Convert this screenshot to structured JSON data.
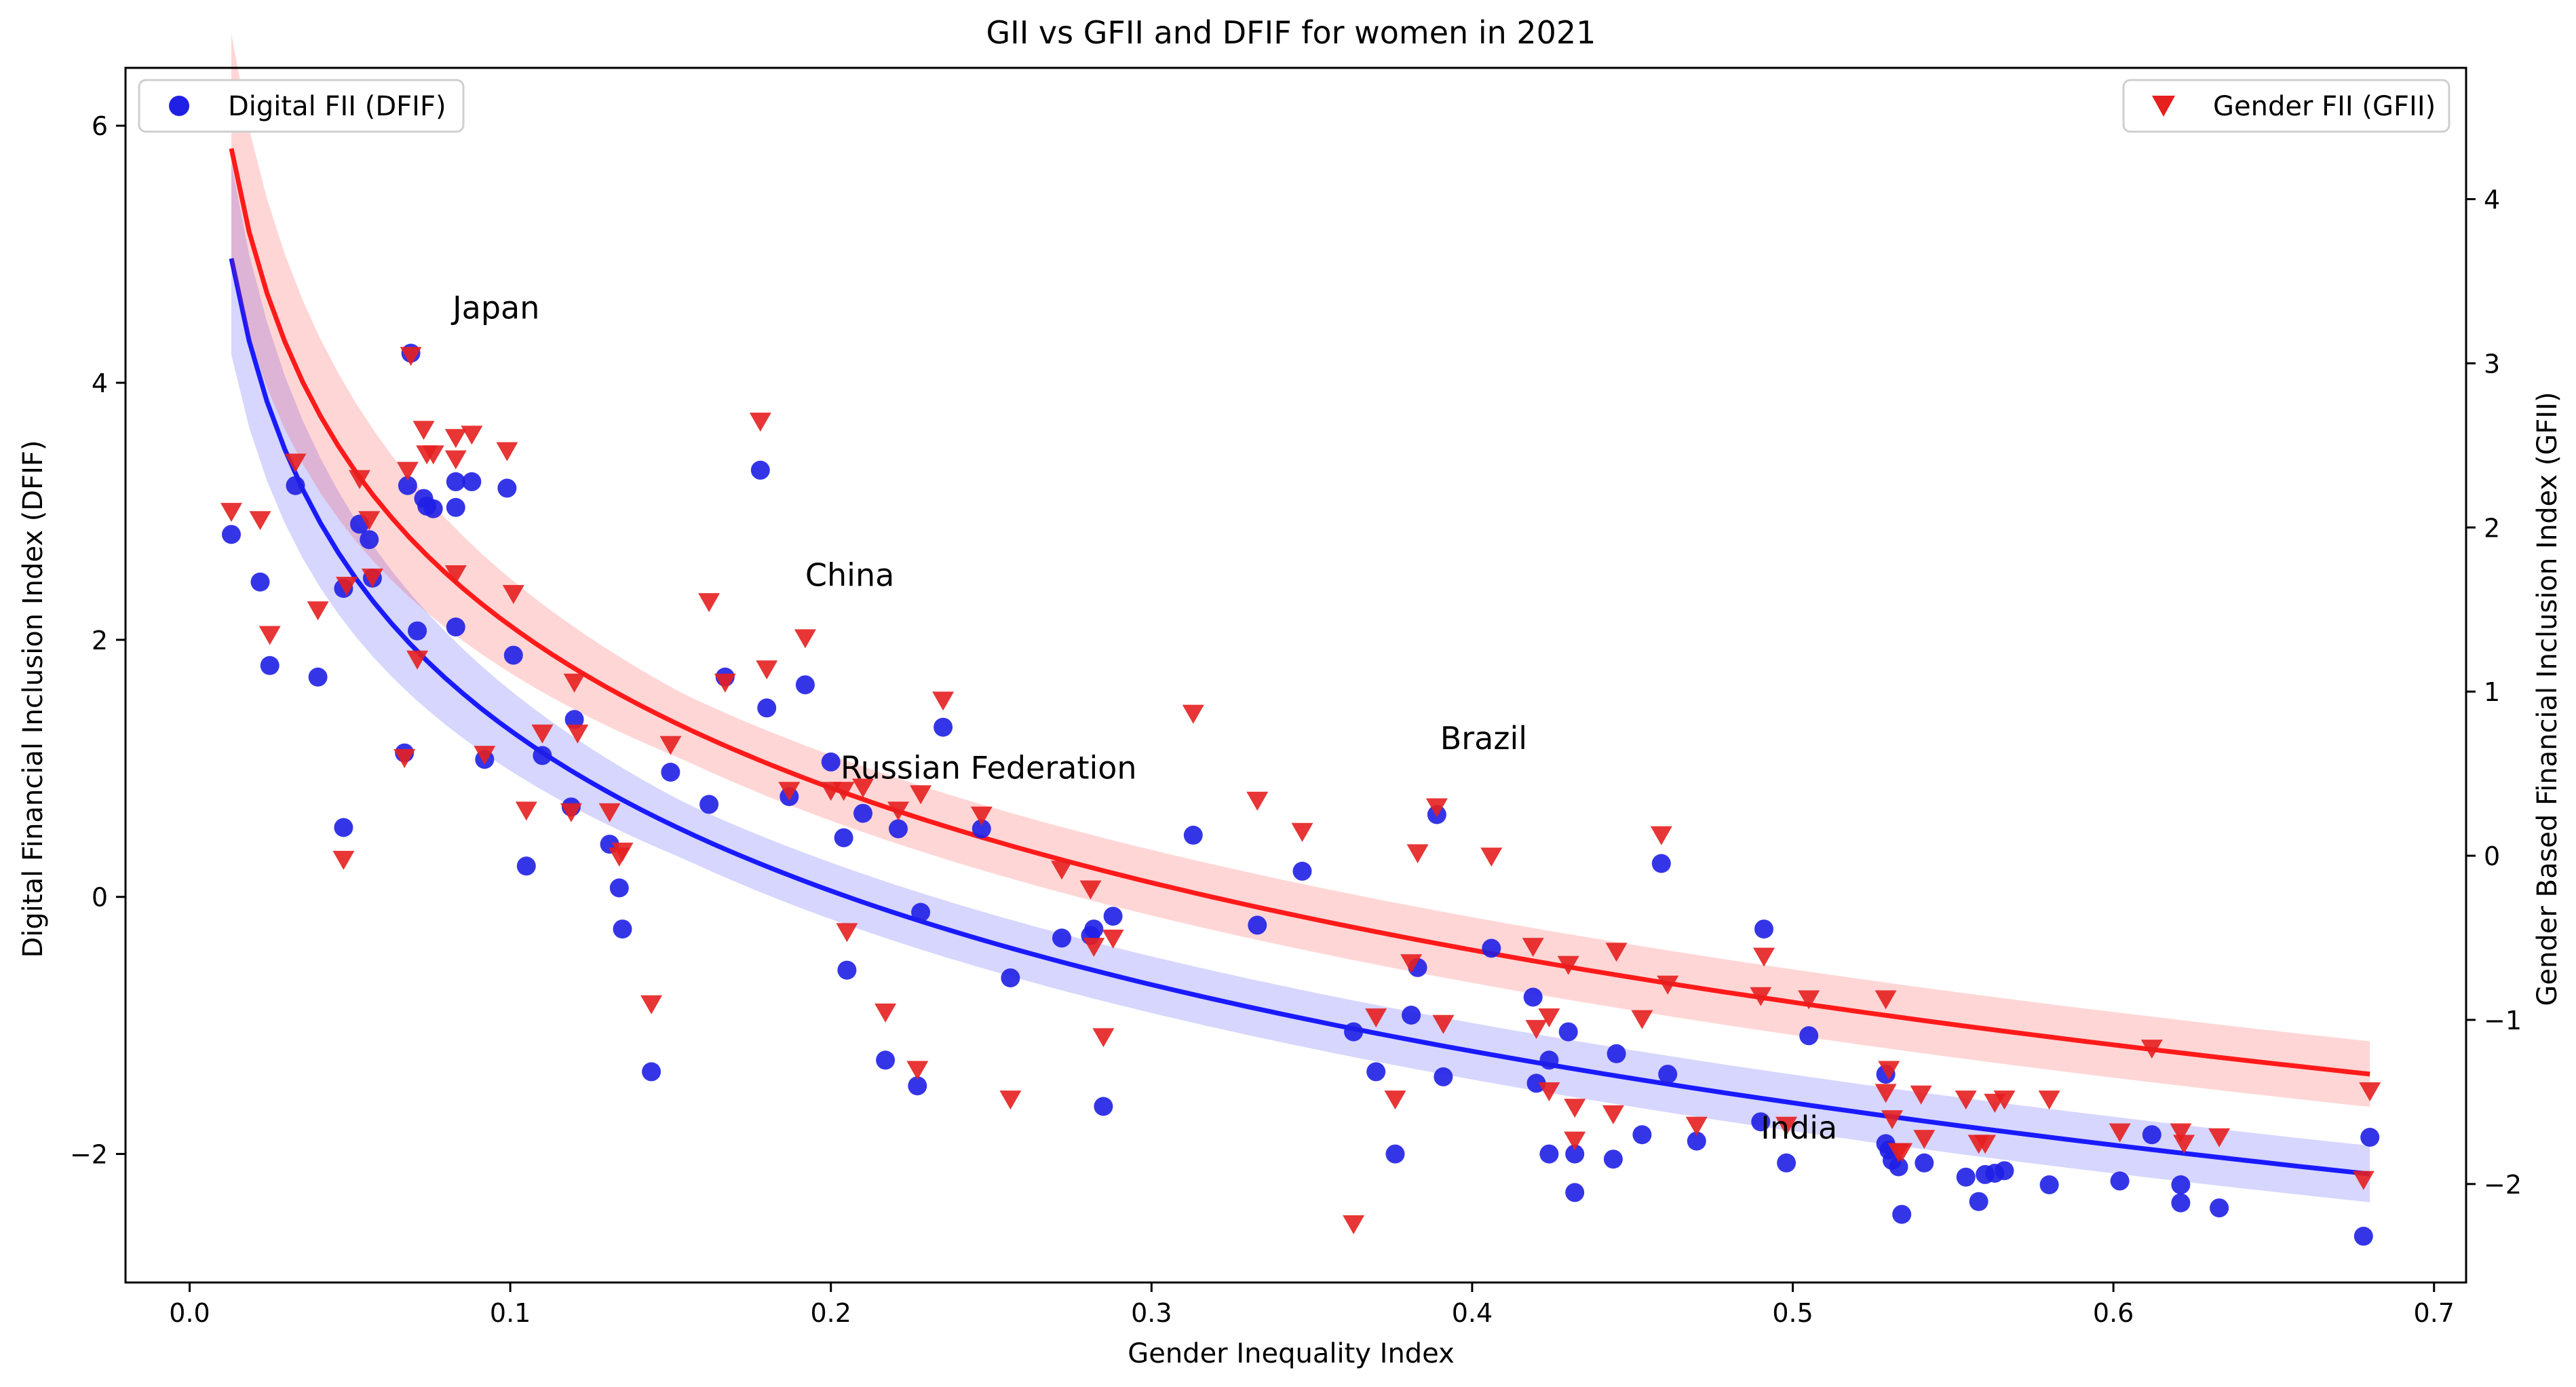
{
  "chart_data": {
    "type": "scatter",
    "title": "GII vs GFII and DFIF for women in 2021",
    "xlabel": "Gender Inequality Index",
    "ylabel_left": "Digital Financial Inclusion Index (DFIF)",
    "ylabel_right": "Gender Based Financial Inclusion Index (GFII)",
    "xlim": [
      -0.02,
      0.71
    ],
    "ylim_left": [
      -3.0,
      6.45
    ],
    "ylim_right": [
      -2.6,
      4.8
    ],
    "x_ticks": [
      0.0,
      0.1,
      0.2,
      0.3,
      0.4,
      0.5,
      0.6,
      0.7
    ],
    "x_tick_labels": [
      "0.0",
      "0.1",
      "0.2",
      "0.3",
      "0.4",
      "0.5",
      "0.6",
      "0.7"
    ],
    "y_left_ticks": [
      -2,
      0,
      2,
      4,
      6
    ],
    "y_left_tick_labels": [
      "−2",
      "0",
      "2",
      "4",
      "6"
    ],
    "y_right_ticks": [
      -2,
      -1,
      0,
      1,
      2,
      3,
      4
    ],
    "y_right_tick_labels": [
      "−2",
      "−1",
      "0",
      "1",
      "2",
      "3",
      "4"
    ],
    "grid": false,
    "legends": [
      {
        "label": "Digital FII (DFIF)",
        "marker": "circle",
        "color": "#1f1fe6",
        "placement": "top-left"
      },
      {
        "label": "Gender FII (GFII)",
        "marker": "triangle-down",
        "color": "#e61f1f",
        "placement": "top-right"
      }
    ],
    "annotations": [
      {
        "text": "Japan",
        "x": 0.082,
        "y": 4.5,
        "axis": "left"
      },
      {
        "text": "China",
        "x": 0.192,
        "y": 2.42,
        "axis": "left"
      },
      {
        "text": "Russian Federation",
        "x": 0.203,
        "y": 0.92,
        "axis": "left"
      },
      {
        "text": "Brazil",
        "x": 0.39,
        "y": 1.15,
        "axis": "left"
      },
      {
        "text": "India",
        "x": 0.49,
        "y": -1.88,
        "axis": "left"
      }
    ],
    "series": [
      {
        "name": "Digital FII (DFIF)",
        "axis": "left",
        "color": "#1f1fe6",
        "marker": "circle",
        "points": [
          [
            0.013,
            2.82
          ],
          [
            0.022,
            2.45
          ],
          [
            0.025,
            1.8
          ],
          [
            0.033,
            3.2
          ],
          [
            0.04,
            1.71
          ],
          [
            0.048,
            0.54
          ],
          [
            0.048,
            2.4
          ],
          [
            0.053,
            2.9
          ],
          [
            0.056,
            2.78
          ],
          [
            0.057,
            2.48
          ],
          [
            0.067,
            1.12
          ],
          [
            0.068,
            3.2
          ],
          [
            0.069,
            4.23
          ],
          [
            0.071,
            2.07
          ],
          [
            0.073,
            3.1
          ],
          [
            0.074,
            3.04
          ],
          [
            0.076,
            3.02
          ],
          [
            0.083,
            2.1
          ],
          [
            0.083,
            3.23
          ],
          [
            0.083,
            3.03
          ],
          [
            0.088,
            3.23
          ],
          [
            0.092,
            1.07
          ],
          [
            0.099,
            3.18
          ],
          [
            0.101,
            1.88
          ],
          [
            0.105,
            0.24
          ],
          [
            0.11,
            1.1
          ],
          [
            0.119,
            0.7
          ],
          [
            0.12,
            1.38
          ],
          [
            0.131,
            0.41
          ],
          [
            0.134,
            0.07
          ],
          [
            0.135,
            -0.25
          ],
          [
            0.144,
            -1.36
          ],
          [
            0.15,
            0.97
          ],
          [
            0.162,
            0.72
          ],
          [
            0.167,
            1.71
          ],
          [
            0.178,
            3.32
          ],
          [
            0.18,
            1.47
          ],
          [
            0.187,
            0.78
          ],
          [
            0.192,
            1.65
          ],
          [
            0.2,
            1.05
          ],
          [
            0.204,
            0.46
          ],
          [
            0.205,
            -0.57
          ],
          [
            0.21,
            0.65
          ],
          [
            0.217,
            -1.27
          ],
          [
            0.221,
            0.53
          ],
          [
            0.227,
            -1.47
          ],
          [
            0.228,
            -0.12
          ],
          [
            0.235,
            1.32
          ],
          [
            0.247,
            0.53
          ],
          [
            0.256,
            -0.63
          ],
          [
            0.272,
            -0.32
          ],
          [
            0.281,
            -0.3
          ],
          [
            0.282,
            -0.25
          ],
          [
            0.285,
            -1.63
          ],
          [
            0.288,
            -0.15
          ],
          [
            0.313,
            0.48
          ],
          [
            0.333,
            -0.22
          ],
          [
            0.347,
            0.2
          ],
          [
            0.363,
            -1.05
          ],
          [
            0.37,
            -1.36
          ],
          [
            0.376,
            -2.0
          ],
          [
            0.381,
            -0.92
          ],
          [
            0.383,
            -0.55
          ],
          [
            0.389,
            0.64
          ],
          [
            0.391,
            -1.4
          ],
          [
            0.406,
            -0.4
          ],
          [
            0.419,
            -0.78
          ],
          [
            0.42,
            -1.45
          ],
          [
            0.424,
            -1.27
          ],
          [
            0.424,
            -2.0
          ],
          [
            0.43,
            -1.05
          ],
          [
            0.432,
            -2.3
          ],
          [
            0.432,
            -2.0
          ],
          [
            0.444,
            -2.04
          ],
          [
            0.445,
            -1.22
          ],
          [
            0.453,
            -1.85
          ],
          [
            0.459,
            0.26
          ],
          [
            0.461,
            -1.38
          ],
          [
            0.47,
            -1.9
          ],
          [
            0.49,
            -1.75
          ],
          [
            0.491,
            -0.25
          ],
          [
            0.498,
            -2.07
          ],
          [
            0.505,
            -1.08
          ],
          [
            0.529,
            -1.38
          ],
          [
            0.529,
            -1.92
          ],
          [
            0.53,
            -1.97
          ],
          [
            0.531,
            -2.05
          ],
          [
            0.533,
            -2.1
          ],
          [
            0.534,
            -2.47
          ],
          [
            0.541,
            -2.07
          ],
          [
            0.554,
            -2.18
          ],
          [
            0.558,
            -2.37
          ],
          [
            0.56,
            -2.16
          ],
          [
            0.563,
            -2.15
          ],
          [
            0.566,
            -2.13
          ],
          [
            0.58,
            -2.24
          ],
          [
            0.602,
            -2.21
          ],
          [
            0.612,
            -1.85
          ],
          [
            0.621,
            -2.38
          ],
          [
            0.621,
            -2.24
          ],
          [
            0.633,
            -2.42
          ],
          [
            0.678,
            -2.64
          ],
          [
            0.68,
            -1.87
          ]
        ]
      },
      {
        "name": "Gender FII (GFII)",
        "axis": "right",
        "color": "#e61f1f",
        "marker": "triangle-down",
        "points": [
          [
            0.013,
            2.1
          ],
          [
            0.022,
            2.05
          ],
          [
            0.025,
            1.35
          ],
          [
            0.033,
            2.4
          ],
          [
            0.04,
            1.5
          ],
          [
            0.048,
            -0.02
          ],
          [
            0.049,
            1.65
          ],
          [
            0.053,
            2.3
          ],
          [
            0.056,
            2.05
          ],
          [
            0.057,
            1.7
          ],
          [
            0.067,
            0.6
          ],
          [
            0.068,
            2.35
          ],
          [
            0.069,
            3.05
          ],
          [
            0.071,
            1.2
          ],
          [
            0.073,
            2.6
          ],
          [
            0.074,
            2.45
          ],
          [
            0.076,
            2.45
          ],
          [
            0.083,
            1.72
          ],
          [
            0.083,
            2.55
          ],
          [
            0.083,
            2.42
          ],
          [
            0.088,
            2.57
          ],
          [
            0.092,
            0.62
          ],
          [
            0.099,
            2.47
          ],
          [
            0.101,
            1.6
          ],
          [
            0.105,
            0.28
          ],
          [
            0.11,
            0.75
          ],
          [
            0.119,
            0.27
          ],
          [
            0.12,
            1.06
          ],
          [
            0.121,
            0.75
          ],
          [
            0.131,
            0.27
          ],
          [
            0.134,
            0.0
          ],
          [
            0.135,
            0.03
          ],
          [
            0.144,
            -0.9
          ],
          [
            0.15,
            0.68
          ],
          [
            0.162,
            1.55
          ],
          [
            0.167,
            1.06
          ],
          [
            0.178,
            2.65
          ],
          [
            0.18,
            1.14
          ],
          [
            0.187,
            0.4
          ],
          [
            0.192,
            1.33
          ],
          [
            0.2,
            0.4
          ],
          [
            0.204,
            0.4
          ],
          [
            0.205,
            -0.46
          ],
          [
            0.21,
            0.42
          ],
          [
            0.217,
            -0.95
          ],
          [
            0.221,
            0.28
          ],
          [
            0.227,
            -1.3
          ],
          [
            0.228,
            0.38
          ],
          [
            0.235,
            0.95
          ],
          [
            0.247,
            0.25
          ],
          [
            0.256,
            -1.48
          ],
          [
            0.272,
            -0.08
          ],
          [
            0.281,
            -0.2
          ],
          [
            0.282,
            -0.55
          ],
          [
            0.285,
            -1.1
          ],
          [
            0.288,
            -0.5
          ],
          [
            0.313,
            0.87
          ],
          [
            0.333,
            0.34
          ],
          [
            0.347,
            0.15
          ],
          [
            0.363,
            -2.24
          ],
          [
            0.37,
            -0.98
          ],
          [
            0.376,
            -1.48
          ],
          [
            0.381,
            -0.65
          ],
          [
            0.383,
            0.02
          ],
          [
            0.389,
            0.3
          ],
          [
            0.391,
            -1.02
          ],
          [
            0.406,
            0.0
          ],
          [
            0.419,
            -0.55
          ],
          [
            0.42,
            -1.05
          ],
          [
            0.424,
            -1.43
          ],
          [
            0.424,
            -0.98
          ],
          [
            0.43,
            -0.66
          ],
          [
            0.432,
            -1.53
          ],
          [
            0.432,
            -1.73
          ],
          [
            0.444,
            -1.57
          ],
          [
            0.445,
            -0.58
          ],
          [
            0.453,
            -0.99
          ],
          [
            0.459,
            0.13
          ],
          [
            0.461,
            -0.78
          ],
          [
            0.47,
            -1.64
          ],
          [
            0.49,
            -0.85
          ],
          [
            0.491,
            -0.61
          ],
          [
            0.498,
            -1.64
          ],
          [
            0.505,
            -0.87
          ],
          [
            0.529,
            -0.87
          ],
          [
            0.529,
            -1.44
          ],
          [
            0.53,
            -1.3
          ],
          [
            0.531,
            -1.6
          ],
          [
            0.533,
            -1.8
          ],
          [
            0.534,
            -1.8
          ],
          [
            0.54,
            -1.45
          ],
          [
            0.541,
            -1.72
          ],
          [
            0.554,
            -1.48
          ],
          [
            0.558,
            -1.75
          ],
          [
            0.56,
            -1.75
          ],
          [
            0.563,
            -1.5
          ],
          [
            0.566,
            -1.48
          ],
          [
            0.58,
            -1.48
          ],
          [
            0.602,
            -1.68
          ],
          [
            0.612,
            -1.17
          ],
          [
            0.621,
            -1.68
          ],
          [
            0.622,
            -1.75
          ],
          [
            0.633,
            -1.71
          ],
          [
            0.678,
            -1.97
          ],
          [
            0.68,
            -1.43
          ]
        ]
      }
    ],
    "fits": [
      {
        "name": "DFIF log fit",
        "axis": "left",
        "color": "#1a1aff",
        "model": "a + b*ln(x)",
        "a": -2.85,
        "b": -1.8,
        "x_range": [
          0.013,
          0.68
        ],
        "band_halfwidth": [
          0.75,
          0.22
        ]
      },
      {
        "name": "GFII log fit",
        "axis": "right",
        "color": "#ff1a1a",
        "model": "a + b*ln(x)",
        "a": -1.88,
        "b": -1.425,
        "x_range": [
          0.013,
          0.68
        ],
        "band_halfwidth": [
          0.7,
          0.2
        ]
      }
    ]
  }
}
